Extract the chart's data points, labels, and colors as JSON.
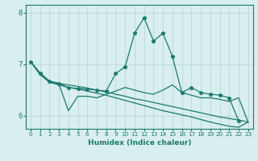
{
  "xlabel": "Humidex (Indice chaleur)",
  "xlim": [
    -0.5,
    23.5
  ],
  "ylim": [
    5.75,
    8.15
  ],
  "yticks": [
    6,
    7,
    8
  ],
  "xticks": [
    0,
    1,
    2,
    3,
    4,
    5,
    6,
    7,
    8,
    9,
    10,
    11,
    12,
    13,
    14,
    15,
    16,
    17,
    18,
    19,
    20,
    21,
    22,
    23
  ],
  "bg_color": "#d9eeee",
  "line_color": "#1a7a6e",
  "grid_color": "#b8d8d8",
  "lines": [
    {
      "x": [
        0,
        1,
        2,
        3,
        4,
        5,
        6,
        7,
        8,
        9,
        10,
        11,
        12,
        13,
        14,
        15,
        16,
        17,
        18,
        19,
        20,
        21,
        22,
        23
      ],
      "y": [
        7.05,
        6.83,
        6.67,
        6.63,
        6.55,
        6.53,
        6.52,
        6.5,
        6.48,
        6.82,
        6.95,
        7.6,
        7.9,
        7.45,
        7.6,
        7.15,
        6.45,
        6.55,
        6.45,
        6.42,
        6.4,
        6.35,
        5.9,
        null
      ],
      "marker": "*",
      "markersize": 3.5
    },
    {
      "x": [
        0,
        1,
        2,
        3,
        4,
        5,
        6,
        7,
        8,
        9,
        10,
        11,
        12,
        13,
        14,
        15,
        16,
        17,
        18,
        19,
        20,
        21,
        22,
        23
      ],
      "y": [
        7.05,
        6.83,
        6.67,
        6.62,
        6.1,
        6.38,
        6.38,
        6.35,
        6.42,
        6.48,
        6.55,
        6.5,
        6.45,
        6.42,
        6.5,
        6.6,
        6.45,
        6.4,
        6.35,
        6.35,
        6.32,
        6.28,
        6.35,
        5.88
      ],
      "marker": null,
      "markersize": 0
    },
    {
      "x": [
        0,
        1,
        2,
        3,
        4,
        5,
        6,
        7,
        8,
        9,
        10,
        11,
        12,
        13,
        14,
        15,
        16,
        17,
        18,
        19,
        20,
        21,
        22,
        23
      ],
      "y": [
        7.05,
        6.82,
        6.67,
        6.63,
        6.6,
        6.57,
        6.54,
        6.5,
        6.46,
        6.42,
        6.38,
        6.33,
        6.3,
        6.26,
        6.22,
        6.18,
        6.14,
        6.1,
        6.06,
        6.02,
        5.98,
        5.95,
        5.92,
        5.88
      ],
      "marker": null,
      "markersize": 0
    },
    {
      "x": [
        0,
        1,
        2,
        3,
        4,
        5,
        6,
        7,
        8,
        9,
        10,
        11,
        12,
        13,
        14,
        15,
        16,
        17,
        18,
        19,
        20,
        21,
        22,
        23
      ],
      "y": [
        7.05,
        6.8,
        6.65,
        6.6,
        6.55,
        6.52,
        6.48,
        6.44,
        6.4,
        6.35,
        6.3,
        6.25,
        6.2,
        6.15,
        6.1,
        6.06,
        6.02,
        5.98,
        5.93,
        5.88,
        5.84,
        5.8,
        5.78,
        5.88
      ],
      "marker": null,
      "markersize": 0
    }
  ]
}
